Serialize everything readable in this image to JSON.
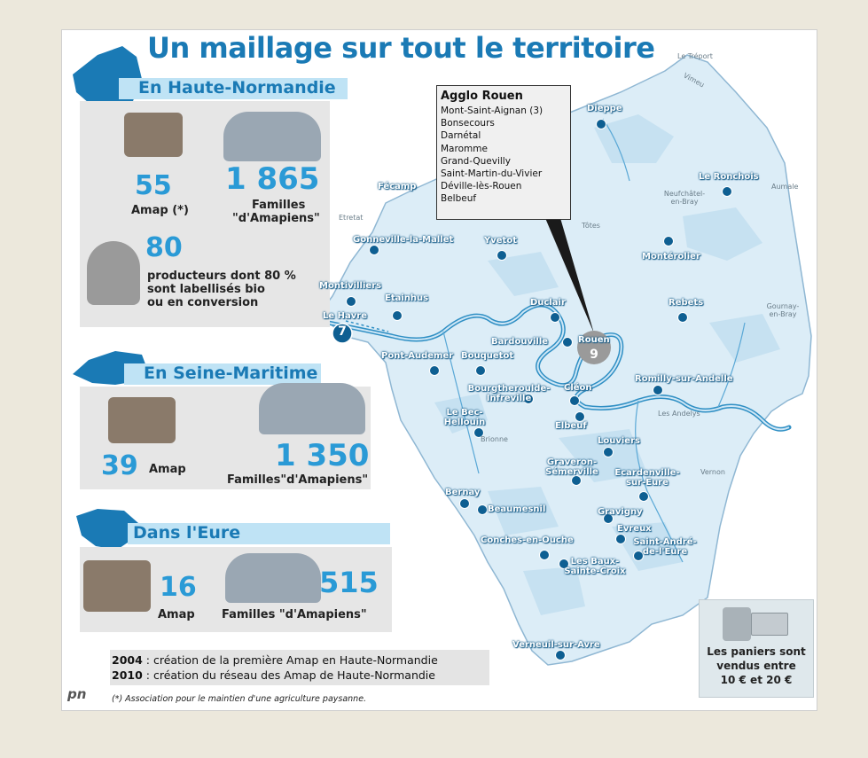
{
  "title": "Un maillage sur tout le territoire",
  "sections": {
    "haute_normandie": {
      "heading": "En Haute-Normandie",
      "amap_count": "55",
      "amap_label": "Amap (*)",
      "families_count": "1 865",
      "families_label_1": "Familles",
      "families_label_2": "\"d'Amapiens\"",
      "producers_count": "80",
      "producers_line1": "producteurs dont 80 %",
      "producers_line2": "sont labellisés bio",
      "producers_line3": "ou en conversion"
    },
    "seine_maritime": {
      "heading": "En Seine-Maritime",
      "amap_count": "39",
      "amap_label": "Amap",
      "families_count": "1 350",
      "families_label": "Familles\"d'Amapiens\""
    },
    "eure": {
      "heading": "Dans l'Eure",
      "amap_count": "16",
      "amap_label": "Amap",
      "families_count": "515",
      "families_label": "Familles \"d'Amapiens\""
    }
  },
  "agglo_rouen": {
    "title": "Agglo Rouen",
    "items": [
      "Mont-Saint-Aignan (3)",
      "Bonsecours",
      "Darnétal",
      "Maromme",
      "Grand-Quevilly",
      "Saint-Martin-du-Vivier",
      "Déville-lès-Rouen",
      "Belbeuf"
    ]
  },
  "cities": [
    {
      "name": "Dieppe"
    },
    {
      "name": "Fécamp"
    },
    {
      "name": "Le Ronchois"
    },
    {
      "name": "Gonneville-la-Mallet"
    },
    {
      "name": "Yvetot"
    },
    {
      "name": "Montérolier"
    },
    {
      "name": "Montivilliers"
    },
    {
      "name": "Etainhus"
    },
    {
      "name": "Rebets"
    },
    {
      "name": "Le Havre"
    },
    {
      "name": "Duclair"
    },
    {
      "name": "Bardouville"
    },
    {
      "name": "Rouen"
    },
    {
      "name": "Pont-Audemer"
    },
    {
      "name": "Bouquetot"
    },
    {
      "name": "Bourgtheroulde-Infreville"
    },
    {
      "name": "Cléon"
    },
    {
      "name": "Romilly-sur-Andelle"
    },
    {
      "name": "Le Bec-Hellouin"
    },
    {
      "name": "Elbeuf"
    },
    {
      "name": "Louviers"
    },
    {
      "name": "Graveron-Sémerville"
    },
    {
      "name": "Ecardenville-sur-Eure"
    },
    {
      "name": "Bernay"
    },
    {
      "name": "Beaumesnil"
    },
    {
      "name": "Gravigny"
    },
    {
      "name": "Evreux"
    },
    {
      "name": "Conches-en-Ouche"
    },
    {
      "name": "Saint-André-de-l'Eure"
    },
    {
      "name": "Les Baux-Sainte-Croix"
    },
    {
      "name": "Verneuil-sur-Avre"
    }
  ],
  "counts": {
    "le_havre": "7",
    "rouen": "9"
  },
  "towns": [
    "Le Tréport",
    "Vimeu",
    "Aumale",
    "Neufchâtel-en-Bray",
    "Etretat",
    "Tôtes",
    "Gournay-en-Bray",
    "Les Andelys",
    "Brionne",
    "Vernon"
  ],
  "notes": {
    "y2004_year": "2004",
    "y2004_text": " : création de la première Amap en Haute-Normandie",
    "y2010_year": "2010",
    "y2010_text": " : création du réseau des Amap de Haute-Normandie",
    "footnote": "(*) Association pour le maintien d'une agriculture paysanne."
  },
  "logo": "pn",
  "price": {
    "line1": "Les paniers sont",
    "line2": "vendus entre",
    "line3": "10 € et 20 €"
  },
  "colors": {
    "accent": "#1a7ab5",
    "map_fill": "#dcedf7",
    "river": "#2f8fc4",
    "dot": "#0e5f92"
  }
}
